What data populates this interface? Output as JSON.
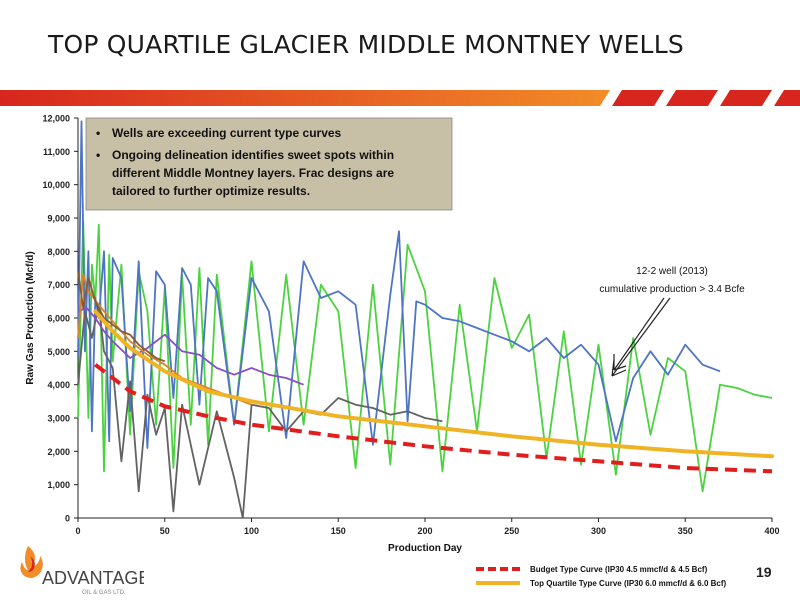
{
  "slide": {
    "title": "TOP QUARTILE GLACIER MIDDLE MONTNEY WELLS",
    "page_number": "19",
    "logo": {
      "name": "ADVANTAGE",
      "sub": "OIL & GAS LTD."
    }
  },
  "colors": {
    "banner_red": "#d7261e",
    "banner_orange": "#f28c28",
    "callout_bg": "#c8bfa7",
    "budget": "#e21d1d",
    "top_quartile": "#f0b323",
    "well_green": "#4bd33f",
    "well_blue": "#4e74c6",
    "well_gray": "#626262",
    "well_purple": "#8a4fc0",
    "well_orange": "#d9822b",
    "well_brown": "#8a5a2e"
  },
  "callout": {
    "bullets": [
      "Wells are exceeding current type curves",
      "Ongoing delineation identifies sweet spots within different Middle Montney layers.  Frac designs are tailored to further optimize results."
    ]
  },
  "annotation": {
    "line1": "12-2 well (2013)",
    "line2": "cumulative production > 3.4 Bcfe"
  },
  "chart_data": {
    "type": "line",
    "xlabel": "Production Day",
    "ylabel": "Raw Gas Production  (Mcf/d)",
    "xlim": [
      0,
      400
    ],
    "ylim": [
      0,
      12000
    ],
    "x_ticks": [
      0,
      50,
      100,
      150,
      200,
      250,
      300,
      350,
      400
    ],
    "y_ticks": [
      0,
      1000,
      2000,
      3000,
      4000,
      5000,
      6000,
      7000,
      8000,
      9000,
      10000,
      11000,
      12000
    ],
    "x_tick_labels": [
      "0",
      "50",
      "100",
      "150",
      "200",
      "250",
      "300",
      "350",
      "400"
    ],
    "y_tick_labels": [
      "0",
      "1,000",
      "2,000",
      "3,000",
      "4,000",
      "5,000",
      "6,000",
      "7,000",
      "8,000",
      "9,000",
      "10,000",
      "11,000",
      "12,000"
    ],
    "grid": false,
    "legend_position": "bottom-right",
    "series": [
      {
        "name": "Budget Type Curve (IP30 4.5 mmcf/d & 4.5 Bcf)",
        "style": "dashed",
        "color_key": "budget",
        "x": [
          10,
          20,
          30,
          50,
          75,
          100,
          150,
          200,
          250,
          300,
          350,
          400
        ],
        "y": [
          4600,
          4200,
          3800,
          3350,
          3050,
          2800,
          2450,
          2150,
          1900,
          1700,
          1500,
          1400
        ]
      },
      {
        "name": "Top Quartile Type Curve (IP30 6.0 mmcf/d & 6.0 Bcf)",
        "style": "solid",
        "color_key": "top_quartile",
        "x": [
          10,
          20,
          30,
          50,
          75,
          100,
          150,
          200,
          250,
          300,
          350,
          400
        ],
        "y": [
          6200,
          5600,
          5100,
          4400,
          3800,
          3500,
          3050,
          2750,
          2450,
          2200,
          2000,
          1850
        ]
      },
      {
        "color_key": "well_green",
        "x": [
          0,
          3,
          6,
          8,
          10,
          12,
          15,
          18,
          20,
          25,
          30,
          35,
          40,
          45,
          50,
          55,
          60,
          65,
          70,
          75,
          80,
          90,
          100,
          110,
          120,
          130,
          140,
          150,
          160,
          170,
          180,
          190,
          200,
          210,
          220,
          230,
          240,
          250,
          260,
          270,
          280,
          290,
          300,
          310,
          320,
          330,
          340,
          350,
          360,
          370,
          380,
          390,
          400
        ],
        "y": [
          3000,
          8900,
          3000,
          7600,
          6500,
          8800,
          1400,
          7900,
          4700,
          7600,
          2500,
          7400,
          6200,
          2800,
          6900,
          1500,
          7300,
          2800,
          7500,
          2200,
          7300,
          2800,
          7700,
          2600,
          7300,
          2800,
          7000,
          6200,
          1500,
          7000,
          1600,
          8200,
          6800,
          1400,
          6400,
          2600,
          7200,
          5100,
          6100,
          1800,
          5600,
          1600,
          5200,
          1300,
          5400,
          2500,
          4800,
          4400,
          800,
          4000,
          3900,
          3700,
          3600
        ]
      },
      {
        "color_key": "well_blue",
        "x": [
          0,
          2,
          4,
          6,
          8,
          10,
          12,
          15,
          18,
          20,
          25,
          30,
          35,
          40,
          45,
          50,
          55,
          60,
          65,
          70,
          75,
          80,
          90,
          100,
          110,
          120,
          130,
          140,
          150,
          160,
          170,
          180,
          185,
          190,
          195,
          200,
          210,
          220,
          230,
          240,
          250,
          260,
          270,
          280,
          290,
          300,
          310,
          320,
          330,
          340,
          350,
          360,
          370
        ],
        "y": [
          4800,
          11900,
          5000,
          8000,
          2600,
          6600,
          6000,
          8000,
          2300,
          7800,
          7200,
          3200,
          7700,
          2100,
          7400,
          7000,
          3600,
          7500,
          7000,
          3400,
          7200,
          6800,
          2800,
          7200,
          6200,
          2400,
          7700,
          6600,
          6800,
          6400,
          2200,
          6700,
          8600,
          2900,
          6500,
          6400,
          6000,
          5900,
          5700,
          5500,
          5300,
          5000,
          5400,
          4800,
          5200,
          4600,
          2300,
          4200,
          5000,
          4300,
          5200,
          4600,
          4400
        ]
      },
      {
        "color_key": "well_gray",
        "x": [
          0,
          4,
          8,
          12,
          15,
          20,
          25,
          30,
          35,
          40,
          45,
          50,
          55,
          60,
          70,
          80,
          90,
          95,
          100,
          110,
          120,
          130,
          140,
          150,
          160,
          170,
          180,
          190,
          200,
          210
        ],
        "y": [
          4000,
          6200,
          5400,
          6400,
          5000,
          4500,
          1700,
          4100,
          800,
          3700,
          2500,
          3300,
          200,
          3400,
          1000,
          3200,
          1200,
          0,
          3400,
          3300,
          2600,
          3200,
          3100,
          3600,
          3400,
          3300,
          3100,
          3200,
          3000,
          2900
        ]
      },
      {
        "color_key": "well_purple",
        "x": [
          0,
          5,
          10,
          15,
          20,
          30,
          40,
          50,
          60,
          70,
          80,
          90,
          100,
          110,
          120,
          130
        ],
        "y": [
          6200,
          6300,
          6000,
          5600,
          5300,
          4800,
          5100,
          5500,
          5000,
          4900,
          4500,
          4300,
          4500,
          4300,
          4200,
          4000
        ]
      },
      {
        "color_key": "well_orange",
        "x": [
          0,
          3,
          6,
          9,
          12,
          15,
          20,
          30,
          40,
          50,
          60,
          75,
          90,
          100
        ],
        "y": [
          5400,
          7300,
          6800,
          6600,
          6400,
          6200,
          5900,
          5300,
          4900,
          4600,
          4200,
          3900,
          3600,
          3400
        ]
      },
      {
        "color_key": "well_brown",
        "x": [
          0,
          3,
          6,
          10,
          15,
          20,
          25,
          30,
          35,
          40,
          45,
          50
        ],
        "y": [
          7400,
          6300,
          7200,
          6500,
          6000,
          5800,
          5600,
          5500,
          5200,
          5000,
          4800,
          4700
        ]
      }
    ]
  }
}
